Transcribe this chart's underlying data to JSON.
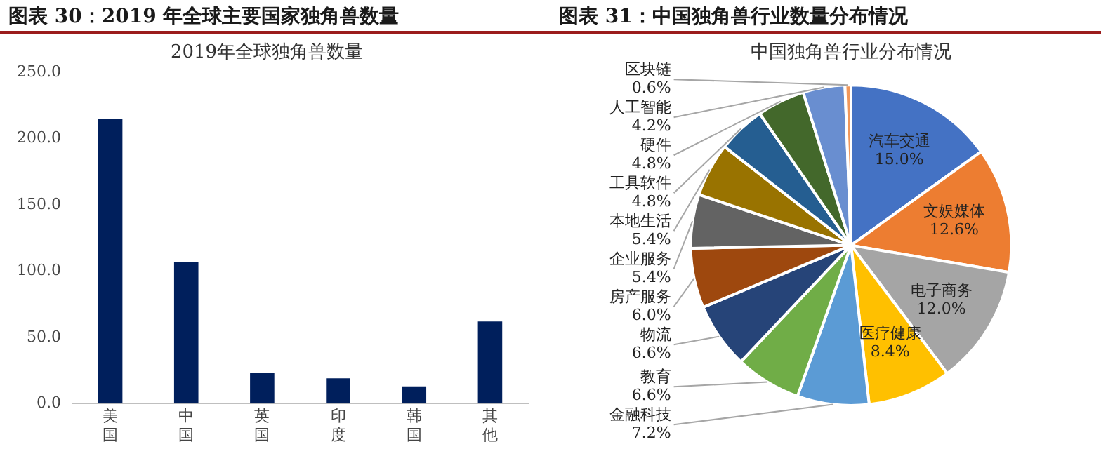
{
  "chart_data": [
    {
      "type": "bar",
      "title": "图表 30：2019 年全球主要国家独角兽数量",
      "subtitle": "2019年全球独角兽数量",
      "categories": [
        "美国",
        "中国",
        "英国",
        "印度",
        "韩国",
        "其他"
      ],
      "values": [
        215,
        107,
        23,
        19,
        13,
        62
      ],
      "color": "#001f5c",
      "ylim": [
        0,
        250
      ],
      "yticks": [
        {
          "value": 0,
          "label": "0.0"
        },
        {
          "value": 50,
          "label": "50.0"
        },
        {
          "value": 100,
          "label": "100.0"
        },
        {
          "value": 150,
          "label": "150.0"
        },
        {
          "value": 200,
          "label": "200.0"
        },
        {
          "value": 250,
          "label": "250.0"
        }
      ],
      "grid": false,
      "legend": false
    },
    {
      "type": "pie",
      "title": "图表 31：中国独角兽行业数量分布情况",
      "subtitle": "中国独角兽行业分布情况",
      "categories": [
        "汽车交通",
        "文娱媒体",
        "电子商务",
        "医疗健康",
        "金融科技",
        "教育",
        "物流",
        "房产服务",
        "企业服务",
        "本地生活",
        "工具软件",
        "硬件",
        "人工智能",
        "区块链"
      ],
      "values": [
        15.0,
        12.6,
        12.0,
        8.4,
        7.2,
        6.6,
        6.6,
        6.0,
        5.4,
        5.4,
        4.8,
        4.8,
        4.2,
        0.6
      ],
      "colors": [
        "#4472c4",
        "#ed7d31",
        "#a5a5a5",
        "#ffc000",
        "#5b9bd5",
        "#70ad47",
        "#264478",
        "#9e480e",
        "#636363",
        "#997300",
        "#255e91",
        "#43682b",
        "#698ed0",
        "#f1975a"
      ],
      "value_labels": [
        "15.0%",
        "12.6%",
        "12.0%",
        "8.4%",
        "7.2%",
        "6.6%",
        "6.6%",
        "6.0%",
        "5.4%",
        "5.4%",
        "4.8%",
        "4.8%",
        "4.2%",
        "0.6%"
      ],
      "legend": false
    }
  ]
}
